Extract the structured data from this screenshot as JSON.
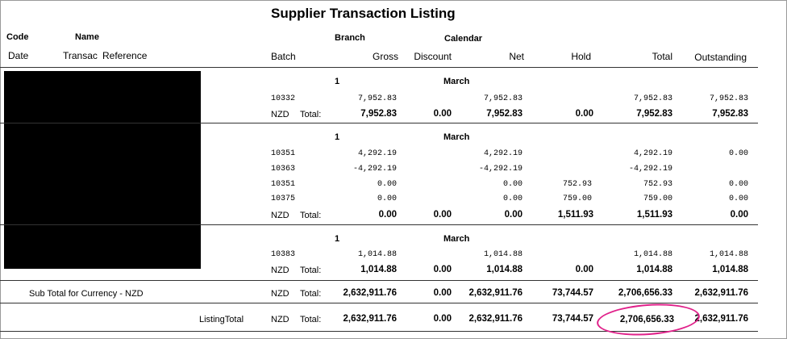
{
  "report": {
    "title": "Supplier Transaction Listing",
    "headers": {
      "code": "Code",
      "name": "Name",
      "branch": "Branch",
      "calendar": "Calendar",
      "date": "Date",
      "transac": "Transac",
      "reference": "Reference",
      "batch": "Batch",
      "gross": "Gross",
      "discount": "Discount",
      "net": "Net",
      "hold": "Hold",
      "total": "Total",
      "outstanding": "Outstanding"
    }
  },
  "groups": [
    {
      "branch": "1",
      "calendar": "March",
      "rows": [
        {
          "batch": "10332",
          "gross": "7,952.83",
          "net": "7,952.83",
          "hold": "",
          "total": "7,952.83",
          "outstanding": "7,952.83"
        }
      ],
      "total": {
        "currency": "NZD",
        "label": "Total:",
        "gross": "7,952.83",
        "discount": "0.00",
        "net": "7,952.83",
        "hold": "0.00",
        "total": "7,952.83",
        "outstanding": "7,952.83"
      }
    },
    {
      "branch": "1",
      "calendar": "March",
      "rows": [
        {
          "batch": "10351",
          "gross": "4,292.19",
          "net": "4,292.19",
          "hold": "",
          "total": "4,292.19",
          "outstanding": "0.00"
        },
        {
          "batch": "10363",
          "gross": "-4,292.19",
          "net": "-4,292.19",
          "hold": "",
          "total": "-4,292.19",
          "outstanding": ""
        },
        {
          "batch": "10351",
          "gross": "0.00",
          "net": "0.00",
          "hold": "752.93",
          "total": "752.93",
          "outstanding": "0.00"
        },
        {
          "batch": "10375",
          "gross": "0.00",
          "net": "0.00",
          "hold": "759.00",
          "total": "759.00",
          "outstanding": "0.00"
        }
      ],
      "total": {
        "currency": "NZD",
        "label": "Total:",
        "gross": "0.00",
        "discount": "0.00",
        "net": "0.00",
        "hold": "1,511.93",
        "total": "1,511.93",
        "outstanding": "0.00"
      }
    },
    {
      "branch": "1",
      "calendar": "March",
      "rows": [
        {
          "batch": "10383",
          "gross": "1,014.88",
          "net": "1,014.88",
          "hold": "",
          "total": "1,014.88",
          "outstanding": "1,014.88"
        }
      ],
      "total": {
        "currency": "NZD",
        "label": "Total:",
        "gross": "1,014.88",
        "discount": "0.00",
        "net": "1,014.88",
        "hold": "0.00",
        "total": "1,014.88",
        "outstanding": "1,014.88"
      }
    }
  ],
  "subtotal": {
    "caption": "Sub Total for Currency - NZD",
    "currency": "NZD",
    "label": "Total:",
    "gross": "2,632,911.76",
    "discount": "0.00",
    "net": "2,632,911.76",
    "hold": "73,744.57",
    "total": "2,706,656.33",
    "outstanding": "2,632,911.76"
  },
  "listing_total": {
    "caption": "ListingTotal",
    "currency": "NZD",
    "label": "Total:",
    "gross": "2,632,911.76",
    "discount": "0.00",
    "net": "2,632,911.76",
    "hold": "73,744.57",
    "total": "2,706,656.33",
    "outstanding": "2,632,911.76"
  },
  "annotation": {
    "color": "#e0218a",
    "marks": "listing_total.total"
  },
  "redaction": {
    "color": "#000000"
  }
}
